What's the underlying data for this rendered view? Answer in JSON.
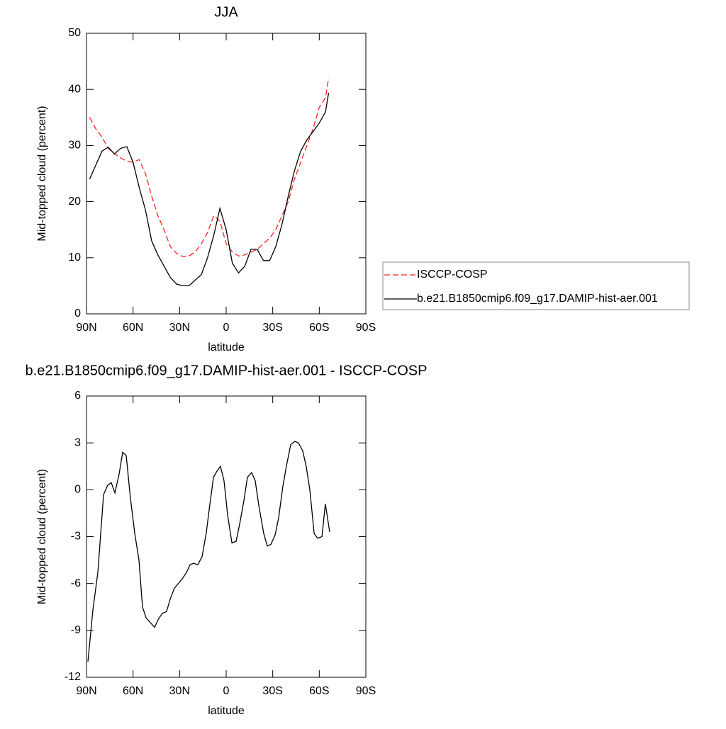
{
  "chart_data": [
    {
      "type": "line",
      "title": "JJA",
      "xlabel": "latitude",
      "ylabel": "Mid-topped cloud (percent)",
      "x": [
        88,
        84,
        80,
        76,
        72,
        68,
        64,
        60,
        56,
        52,
        48,
        44,
        40,
        36,
        32,
        28,
        24,
        20,
        16,
        12,
        8,
        4,
        0,
        -4,
        -8,
        -12,
        -16,
        -20,
        -24,
        -28,
        -32,
        -36,
        -40,
        -44,
        -48,
        -52,
        -56,
        -60,
        -64,
        -66
      ],
      "series": [
        {
          "name": "ISCCP-COSP",
          "color": "#ff2020",
          "dash": true,
          "values": [
            35,
            33,
            31.5,
            29.5,
            28.5,
            27.8,
            27.2,
            27,
            27.5,
            25,
            21,
            17.5,
            15,
            12,
            10.8,
            10.2,
            10.3,
            11,
            12.5,
            14.5,
            17.5,
            16.5,
            12.5,
            11,
            10.3,
            10.5,
            11,
            11.5,
            12.5,
            13.5,
            15,
            17.5,
            20,
            24,
            27,
            30,
            33,
            36.8,
            38.5,
            42
          ]
        },
        {
          "name": "b.e21.B1850cmip6.f09_g17.DAMIP-hist-aer.001",
          "color": "#000000",
          "dash": false,
          "values": [
            24,
            26.5,
            29,
            29.7,
            28.5,
            29.5,
            29.8,
            27,
            22.5,
            18.5,
            13,
            10.5,
            8.5,
            6.5,
            5.3,
            5,
            5,
            6,
            7,
            10,
            14,
            18.8,
            15,
            9,
            7.3,
            8.5,
            11.5,
            11.5,
            9.5,
            9.5,
            12,
            16,
            21,
            25.5,
            29,
            31,
            32.5,
            34,
            36,
            39.4
          ]
        }
      ],
      "xlim": [
        90,
        -90
      ],
      "xticks": [
        {
          "value": 90,
          "label": "90N"
        },
        {
          "value": 60,
          "label": "60N"
        },
        {
          "value": 30,
          "label": "30N"
        },
        0,
        {
          "value": -30,
          "label": "30S"
        },
        {
          "value": -60,
          "label": "60S"
        },
        {
          "value": -90,
          "label": "90S"
        }
      ],
      "ylim": [
        0,
        50
      ],
      "yticks": [
        0,
        10,
        20,
        30,
        40,
        50
      ],
      "legend": "outside-right"
    },
    {
      "type": "line",
      "title": "b.e21.B1850cmip6.f09_g17.DAMIP-hist-aer.001 - ISCCP-COSP",
      "xlabel": "latitude",
      "ylabel": "Mid-topped cloud (percent)",
      "x": [
        89.1,
        85.9,
        82.7,
        79,
        76.3,
        74,
        71.7,
        69,
        66.7,
        64.4,
        61.7,
        58.9,
        56.2,
        53.9,
        51.6,
        48.9,
        46.1,
        43.8,
        41.1,
        38.4,
        36.1,
        33.4,
        28.3,
        25.6,
        23.3,
        21,
        18.3,
        15.6,
        12.9,
        10.6,
        8.2,
        5.9,
        3.7,
        1.4,
        -0.9,
        -3.7,
        -6.4,
        -8.7,
        -11.4,
        -13.7,
        -16.4,
        -18.7,
        -21,
        -24.2,
        -26.5,
        -28.8,
        -31.5,
        -33.8,
        -36.5,
        -38.8,
        -41.6,
        -44.3,
        -46.6,
        -49.3,
        -51.6,
        -53.9,
        -56.7,
        -58.9,
        -61.7,
        -63.9,
        -66.7
      ],
      "values": [
        -11,
        -7.7,
        -5.3,
        -0.3,
        0.3,
        0.45,
        -0.2,
        1,
        2.4,
        2.2,
        -0.5,
        -2.8,
        -4.5,
        -7.5,
        -8.2,
        -8.5,
        -8.8,
        -8.3,
        -7.9,
        -7.8,
        -7,
        -6.3,
        -5.7,
        -5.3,
        -4.8,
        -4.7,
        -4.8,
        -4.3,
        -2.8,
        -1,
        0.8,
        1.2,
        1.5,
        0.6,
        -1.6,
        -3.4,
        -3.3,
        -2.2,
        -0.7,
        0.8,
        1.1,
        0.6,
        -1,
        -2.8,
        -3.6,
        -3.5,
        -2.9,
        -1.8,
        0.2,
        1.5,
        2.9,
        3.1,
        3,
        2.5,
        1.5,
        0,
        -2.8,
        -3.1,
        -3,
        -0.9,
        -2.7
      ],
      "color": "#000000",
      "xlim": [
        90,
        -90
      ],
      "xticks": [
        {
          "value": 90,
          "label": "90N"
        },
        {
          "value": 60,
          "label": "60N"
        },
        {
          "value": 30,
          "label": "30N"
        },
        0,
        {
          "value": -30,
          "label": "30S"
        },
        {
          "value": -60,
          "label": "60S"
        },
        {
          "value": -90,
          "label": "90S"
        }
      ],
      "ylim": [
        -12,
        6
      ],
      "yticks": [
        -12,
        -9,
        -6,
        -3,
        0,
        3,
        6
      ]
    }
  ]
}
